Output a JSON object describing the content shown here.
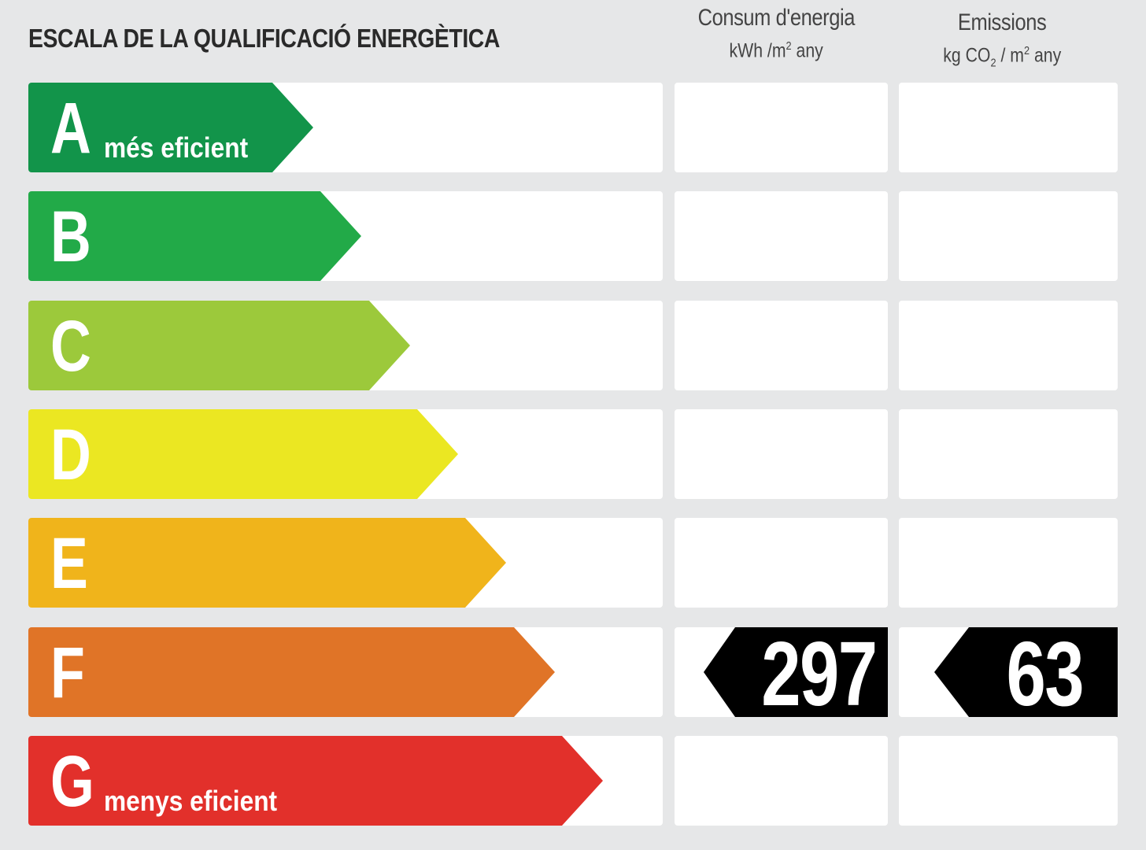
{
  "title": "ESCALA DE LA QUALIFICACIÓ ENERGÈTICA",
  "columns": {
    "consum": {
      "title": "Consum d'energia",
      "unit_pre": "kWh /m",
      "unit_sup": "2",
      "unit_post": " any"
    },
    "emissions": {
      "title": "Emissions",
      "unit_pre": "kg CO",
      "unit_sub": "2",
      "unit_mid": " / m",
      "unit_sup": "2",
      "unit_post": " any"
    }
  },
  "classes": [
    {
      "letter": "A",
      "sub": "més eficient",
      "color": "#12944a"
    },
    {
      "letter": "B",
      "sub": "",
      "color": "#22aa48"
    },
    {
      "letter": "C",
      "sub": "",
      "color": "#9cc93b"
    },
    {
      "letter": "D",
      "sub": "",
      "color": "#ebe722"
    },
    {
      "letter": "E",
      "sub": "",
      "color": "#f0b41b"
    },
    {
      "letter": "F",
      "sub": "",
      "color": "#e07427"
    },
    {
      "letter": "G",
      "sub": "menys eficient",
      "color": "#e2302b"
    }
  ],
  "rating": {
    "class": "F",
    "consum_value": "297",
    "emissions_value": "63"
  }
}
